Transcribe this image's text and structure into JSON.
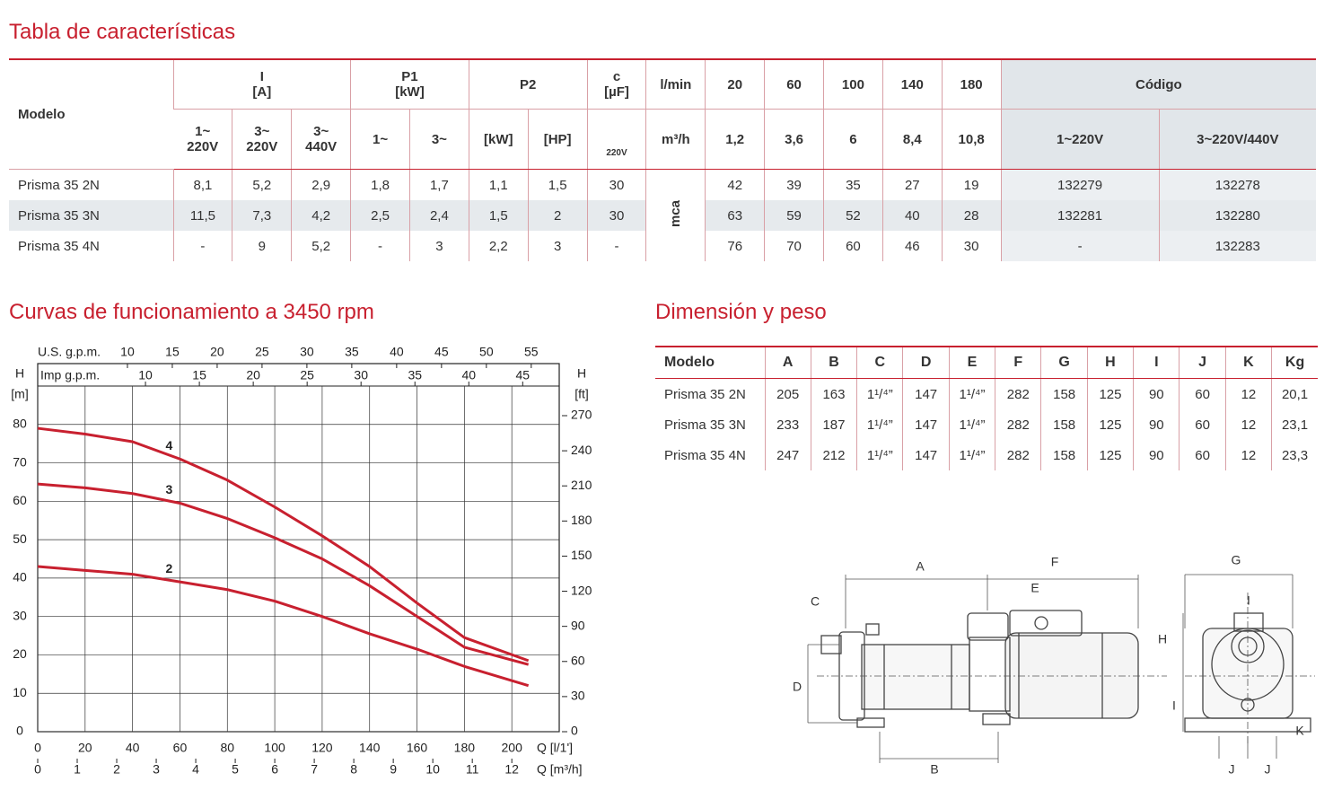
{
  "title": "Tabla de características",
  "table": {
    "header_top": [
      "Modelo",
      "I\n[A]",
      "P1\n[kW]",
      "P2",
      "c\n[µF]",
      "l/min",
      "20",
      "60",
      "100",
      "140",
      "180",
      "Código"
    ],
    "header_sub": [
      "1~\n220V",
      "3~\n220V",
      "3~\n440V",
      "1~",
      "3~",
      "[kW]",
      "[HP]",
      "220V",
      "m³/h",
      "1,2",
      "3,6",
      "6",
      "8,4",
      "10,8",
      "1~220V",
      "3~220V/440V"
    ],
    "unit": "mca",
    "rows": [
      [
        "Prisma 35 2N",
        "8,1",
        "5,2",
        "2,9",
        "1,8",
        "1,7",
        "1,1",
        "1,5",
        "30",
        "42",
        "39",
        "35",
        "27",
        "19",
        "132279",
        "132278"
      ],
      [
        "Prisma 35 3N",
        "11,5",
        "7,3",
        "4,2",
        "2,5",
        "2,4",
        "1,5",
        "2",
        "30",
        "63",
        "59",
        "52",
        "40",
        "28",
        "132281",
        "132280"
      ],
      [
        "Prisma 35 4N",
        "-",
        "9",
        "5,2",
        "-",
        "3",
        "2,2",
        "3",
        "-",
        "76",
        "70",
        "60",
        "46",
        "30",
        "-",
        "132283"
      ]
    ]
  },
  "chart_title": "Curvas de funcionamiento a 3450 rpm",
  "chart_data": {
    "type": "line",
    "xlabel": "Q  [l/1']",
    "x2label": "Q  [m³/h]",
    "x3label": "U.S.  g.p.m.",
    "x4label": "Imp  g.p.m.",
    "ylabel": "H",
    "yunit": "[m]",
    "y2label": "H",
    "y2unit": "[ft]",
    "x": [
      0,
      20,
      40,
      60,
      80,
      100,
      120,
      140,
      160,
      180,
      207
    ],
    "series": [
      {
        "name": "4",
        "color": "#c8202f",
        "values": [
          79,
          77.5,
          75.5,
          71,
          65.5,
          58.5,
          51,
          43,
          33.5,
          24.5,
          18.5
        ]
      },
      {
        "name": "3",
        "color": "#c8202f",
        "values": [
          64.5,
          63.5,
          62,
          59.5,
          55.5,
          50.5,
          45,
          38,
          30,
          22,
          17.5
        ]
      },
      {
        "name": "2",
        "color": "#c8202f",
        "values": [
          43,
          42,
          41,
          39,
          37,
          34,
          30,
          25.5,
          21.5,
          17,
          12
        ]
      }
    ],
    "xlim": [
      0,
      220
    ],
    "xticks": [
      0,
      20,
      40,
      60,
      80,
      100,
      120,
      140,
      160,
      180,
      200
    ],
    "x2lim": [
      0,
      13.2
    ],
    "x2ticks": [
      0,
      1,
      2,
      3,
      4,
      5,
      6,
      7,
      8,
      9,
      10,
      11,
      12
    ],
    "x3lim": [
      0,
      58.12
    ],
    "x3ticks": [
      10,
      15,
      20,
      25,
      30,
      35,
      40,
      45,
      50,
      55
    ],
    "x4lim": [
      0,
      48.39
    ],
    "x4ticks": [
      10,
      15,
      20,
      25,
      30,
      35,
      40,
      45
    ],
    "ylim": [
      0,
      90
    ],
    "yticks": [
      0,
      10,
      20,
      30,
      40,
      50,
      60,
      70,
      80
    ],
    "y2lim": [
      0,
      295.3
    ],
    "y2ticks": [
      0,
      30,
      60,
      90,
      120,
      150,
      180,
      210,
      240,
      270
    ],
    "grid": true
  },
  "dimensions": {
    "title": "Dimensión y peso",
    "header": [
      "Modelo",
      "A",
      "B",
      "C",
      "D",
      "E",
      "F",
      "G",
      "H",
      "I",
      "J",
      "K",
      "Kg"
    ],
    "rows": [
      [
        "Prisma 35 2N",
        "205",
        "163",
        "1¹/⁴”",
        "147",
        "1¹/⁴”",
        "282",
        "158",
        "125",
        "90",
        "60",
        "12",
        "20,1"
      ],
      [
        "Prisma 35 3N",
        "233",
        "187",
        "1¹/⁴”",
        "147",
        "1¹/⁴”",
        "282",
        "158",
        "125",
        "90",
        "60",
        "12",
        "23,1"
      ],
      [
        "Prisma 35 4N",
        "247",
        "212",
        "1¹/⁴”",
        "147",
        "1¹/⁴”",
        "282",
        "158",
        "125",
        "90",
        "60",
        "12",
        "23,3"
      ]
    ]
  },
  "drawing": {
    "labels": [
      "A",
      "F",
      "C",
      "E",
      "D",
      "B",
      "G",
      "H",
      "I",
      "I",
      "J",
      "J",
      "K"
    ]
  }
}
